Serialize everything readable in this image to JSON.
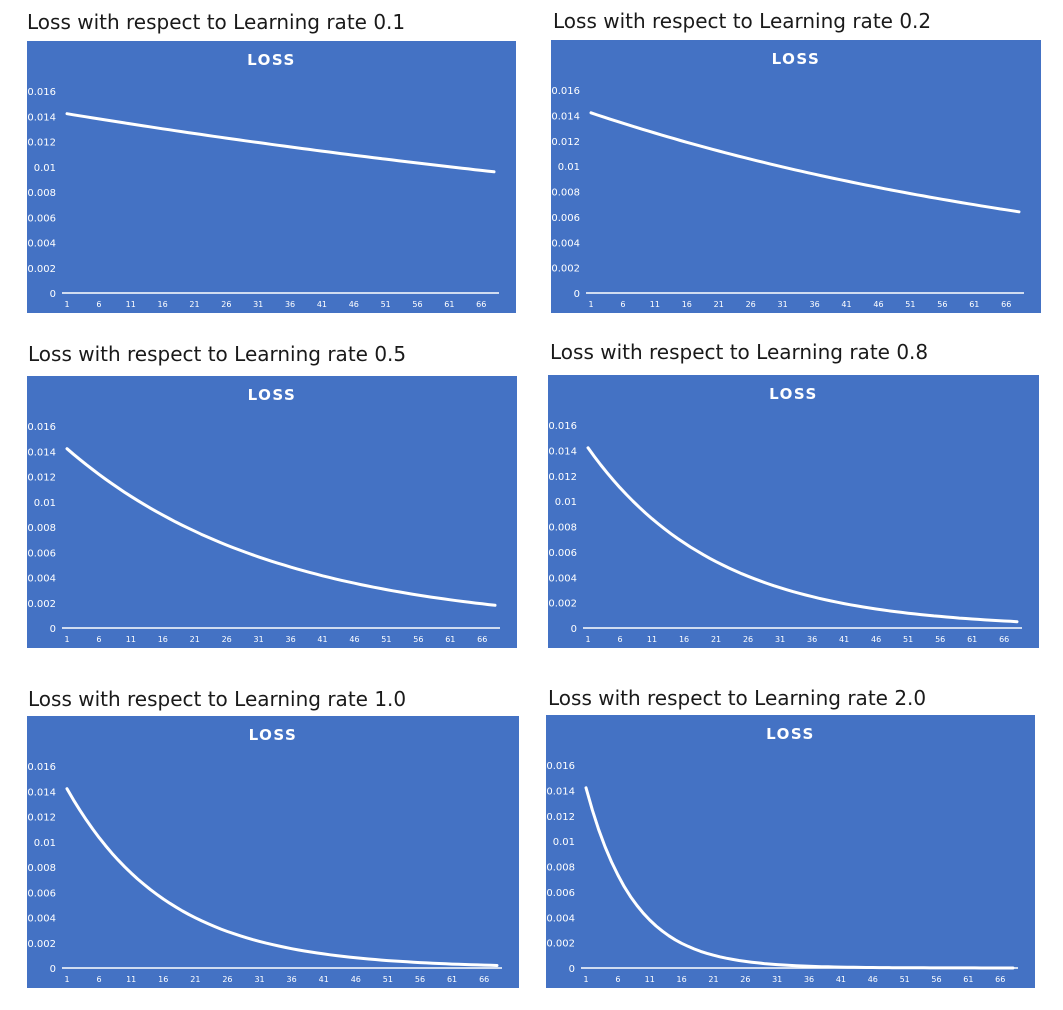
{
  "charts": [
    {
      "caption": "Loss with respect to Learning rate 0.1",
      "chart_data": {
        "type": "line",
        "title": "LOSS",
        "y0": 0.0142,
        "y_end": 0.0096,
        "n": 68,
        "ylim": [
          0,
          0.016
        ],
        "yticks": [
          "0",
          "0.002",
          "0.004",
          "0.006",
          "0.008",
          "0.01",
          "0.012",
          "0.014",
          "0.016"
        ],
        "xticks": [
          "1",
          "6",
          "11",
          "16",
          "21",
          "26",
          "31",
          "36",
          "41",
          "46",
          "51",
          "56",
          "61",
          "66"
        ]
      }
    },
    {
      "caption": "Loss with respect to Learning rate 0.2",
      "chart_data": {
        "type": "line",
        "title": "LOSS",
        "y0": 0.0142,
        "y_end": 0.0064,
        "n": 68,
        "ylim": [
          0,
          0.016
        ],
        "yticks": [
          "0",
          "0.002",
          "0.004",
          "0.006",
          "0.008",
          "0.01",
          "0.012",
          "0.014",
          "0.016"
        ],
        "xticks": [
          "1",
          "6",
          "11",
          "16",
          "21",
          "26",
          "31",
          "36",
          "41",
          "46",
          "51",
          "56",
          "61",
          "66"
        ]
      }
    },
    {
      "caption": "Loss with respect to Learning rate 0.5",
      "chart_data": {
        "type": "line",
        "title": "LOSS",
        "y0": 0.0142,
        "y_end": 0.0018,
        "n": 68,
        "ylim": [
          0,
          0.016
        ],
        "yticks": [
          "0",
          "0.002",
          "0.004",
          "0.006",
          "0.008",
          "0.01",
          "0.012",
          "0.014",
          "0.016"
        ],
        "xticks": [
          "1",
          "6",
          "11",
          "16",
          "21",
          "26",
          "31",
          "36",
          "41",
          "46",
          "51",
          "56",
          "61",
          "66"
        ]
      }
    },
    {
      "caption": "Loss with respect to Learning rate 0.8",
      "chart_data": {
        "type": "line",
        "title": "LOSS",
        "y0": 0.0142,
        "y_end": 0.0005,
        "n": 68,
        "ylim": [
          0,
          0.016
        ],
        "yticks": [
          "0",
          "0.002",
          "0.004",
          "0.006",
          "0.008",
          "0.01",
          "0.012",
          "0.014",
          "0.016"
        ],
        "xticks": [
          "1",
          "6",
          "11",
          "16",
          "21",
          "26",
          "31",
          "36",
          "41",
          "46",
          "51",
          "56",
          "61",
          "66"
        ]
      }
    },
    {
      "caption": "Loss with respect to Learning rate 1.0",
      "chart_data": {
        "type": "line",
        "title": "LOSS",
        "y0": 0.0142,
        "y_end": 0.0002,
        "n": 68,
        "ylim": [
          0,
          0.016
        ],
        "yticks": [
          "0",
          "0.002",
          "0.004",
          "0.006",
          "0.008",
          "0.01",
          "0.012",
          "0.014",
          "0.016"
        ],
        "xticks": [
          "1",
          "6",
          "11",
          "16",
          "21",
          "26",
          "31",
          "36",
          "41",
          "46",
          "51",
          "56",
          "61",
          "66"
        ]
      }
    },
    {
      "caption": "Loss with respect to Learning rate 2.0",
      "chart_data": {
        "type": "line",
        "title": "LOSS",
        "y0": 0.0142,
        "y_end": 2e-06,
        "n": 68,
        "ylim": [
          0,
          0.016
        ],
        "yticks": [
          "0",
          "0.002",
          "0.004",
          "0.006",
          "0.008",
          "0.01",
          "0.012",
          "0.014",
          "0.016"
        ],
        "xticks": [
          "1",
          "6",
          "11",
          "16",
          "21",
          "26",
          "31",
          "36",
          "41",
          "46",
          "51",
          "56",
          "61",
          "66"
        ]
      }
    }
  ]
}
